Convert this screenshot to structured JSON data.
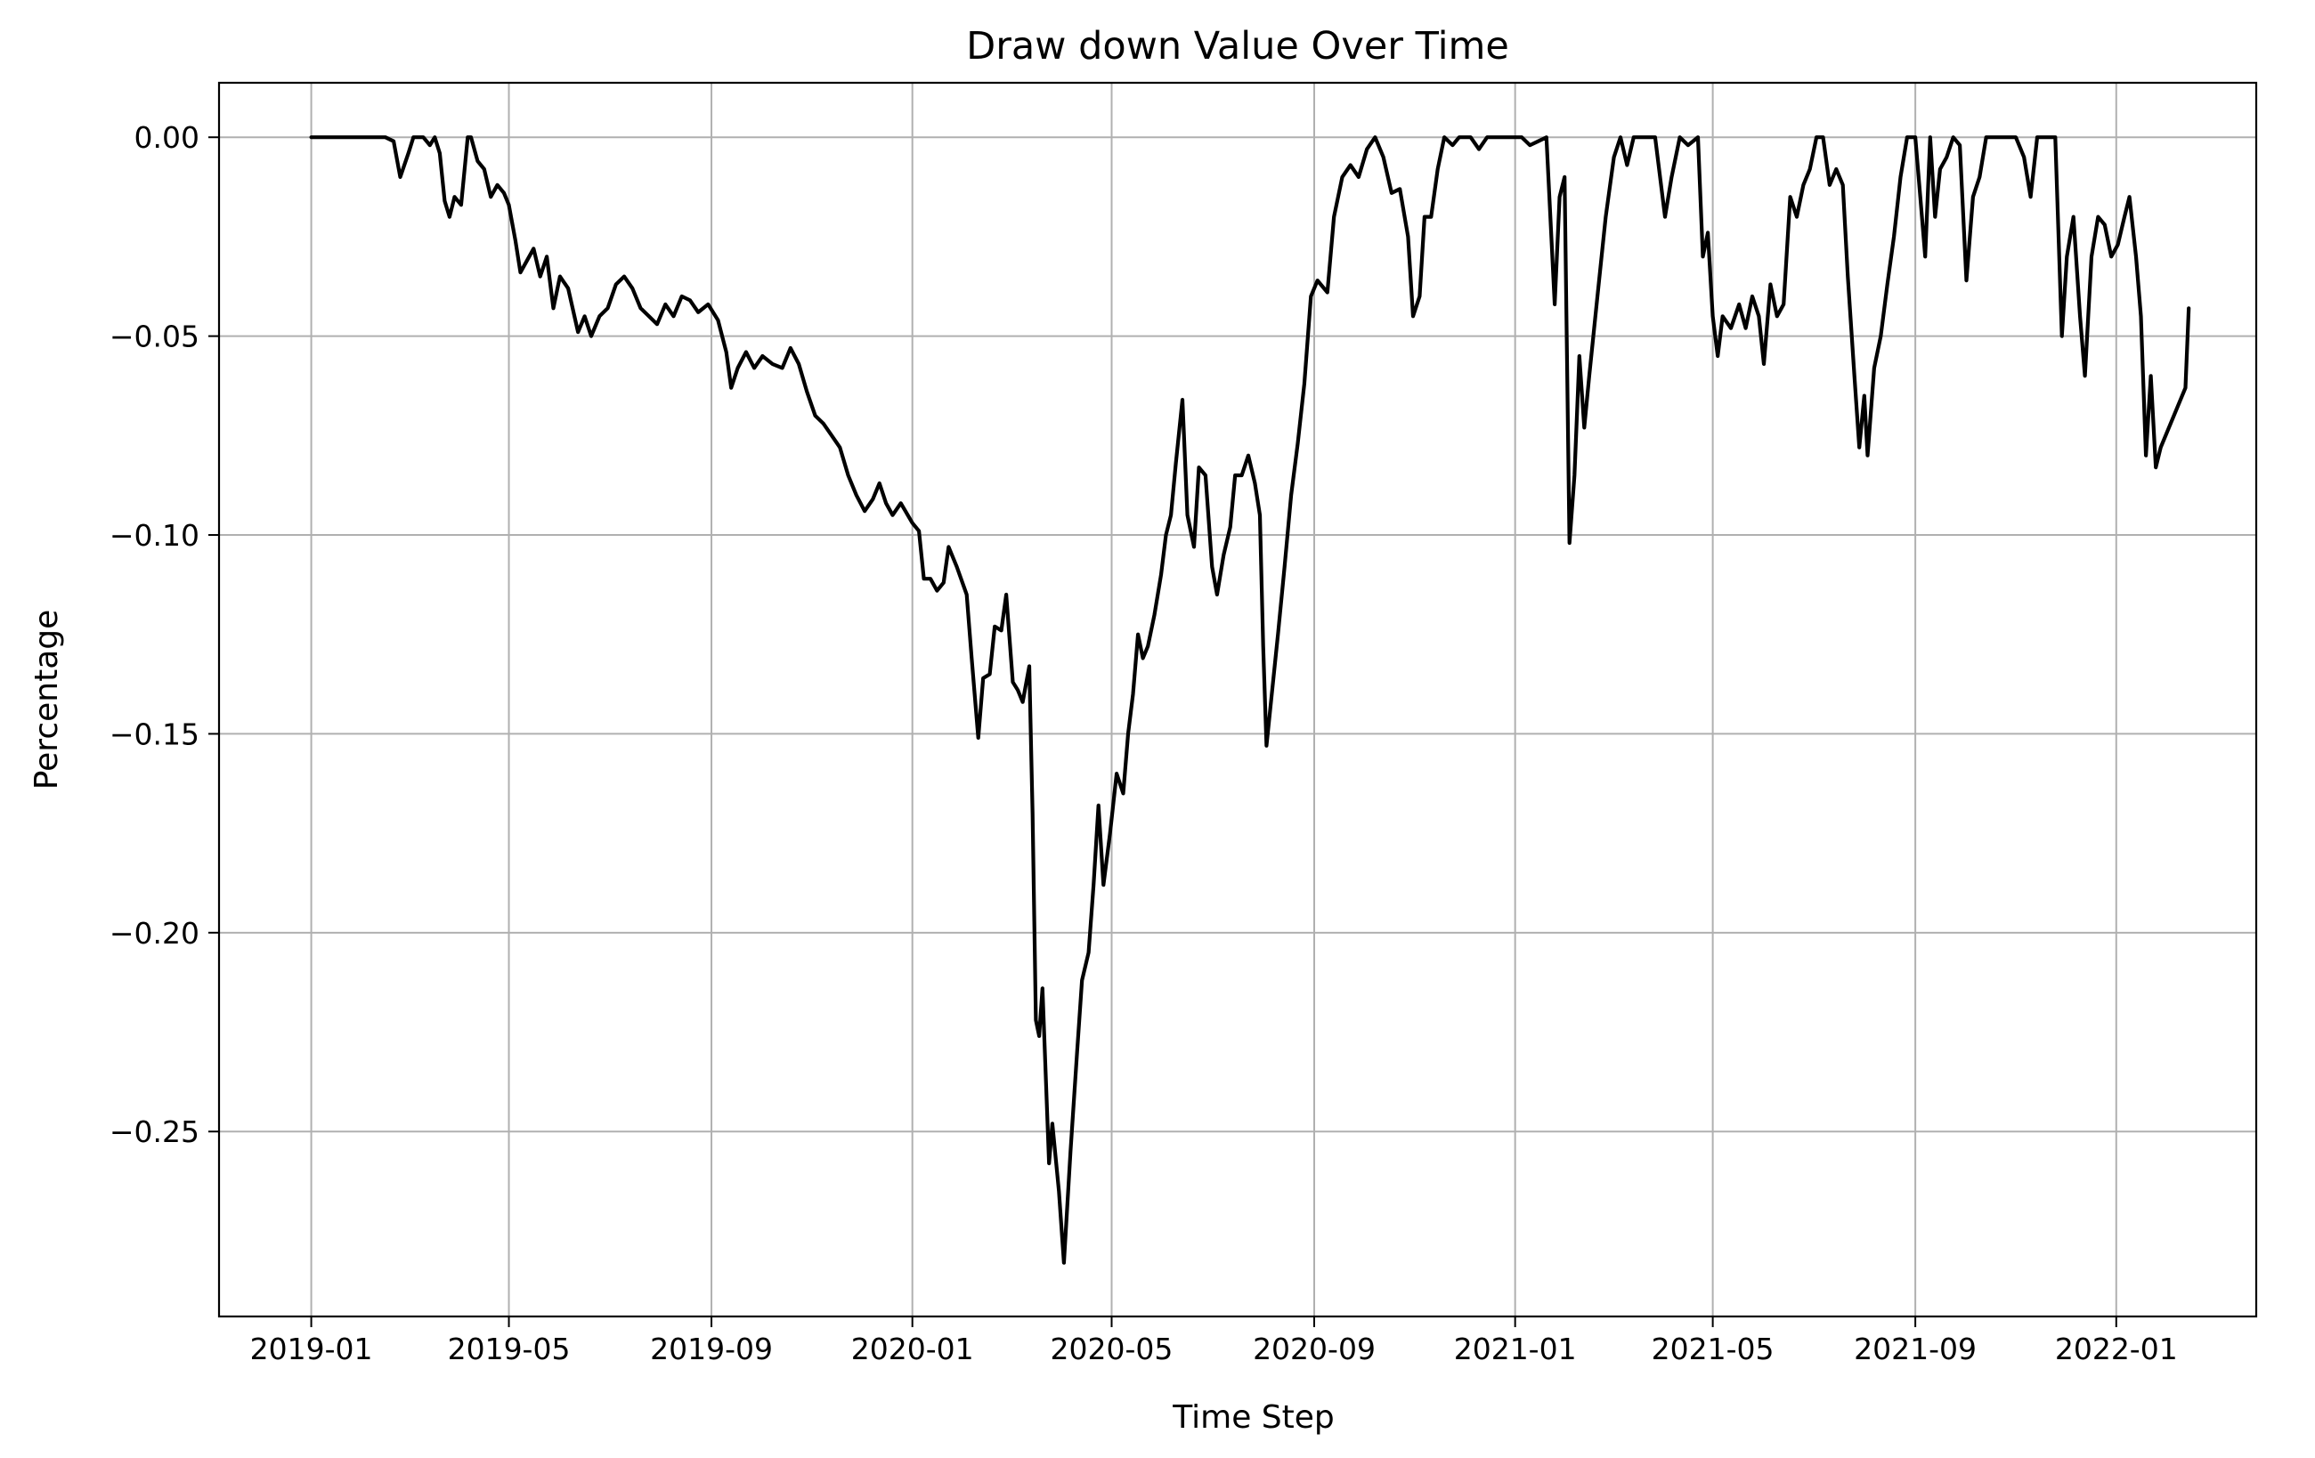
{
  "chart_data": {
    "type": "line",
    "title": "Draw down Value Over Time",
    "xlabel": "Time Step",
    "ylabel": "Percentage",
    "xlim": [
      "2018-11-06",
      "2022-03-27"
    ],
    "ylim": [
      -0.2965,
      0.0137
    ],
    "x_ticks": [
      "2019-01",
      "2019-05",
      "2019-09",
      "2020-01",
      "2020-05",
      "2020-09",
      "2021-01",
      "2021-05",
      "2021-09",
      "2022-01"
    ],
    "y_ticks": [
      0.0,
      -0.05,
      -0.1,
      -0.15,
      -0.2,
      -0.25
    ],
    "y_tick_labels": [
      "0.00",
      "−0.05",
      "−0.10",
      "−0.15",
      "−0.20",
      "−0.25"
    ],
    "grid": true,
    "line_color": "#000000",
    "grid_color": "#b0b0b0",
    "series": [
      {
        "values": [
          [
            "2019-01-01",
            0.0
          ],
          [
            "2019-02-15",
            0.0
          ],
          [
            "2019-02-20",
            -0.001
          ],
          [
            "2019-02-24",
            -0.01
          ],
          [
            "2019-03-01",
            -0.004
          ],
          [
            "2019-03-04",
            0.0
          ],
          [
            "2019-03-10",
            0.0
          ],
          [
            "2019-03-14",
            -0.002
          ],
          [
            "2019-03-17",
            0.0
          ],
          [
            "2019-03-20",
            -0.004
          ],
          [
            "2019-03-23",
            -0.016
          ],
          [
            "2019-03-26",
            -0.02
          ],
          [
            "2019-03-29",
            -0.015
          ],
          [
            "2019-04-02",
            -0.017
          ],
          [
            "2019-04-06",
            0.0
          ],
          [
            "2019-04-08",
            0.0
          ],
          [
            "2019-04-12",
            -0.006
          ],
          [
            "2019-04-16",
            -0.008
          ],
          [
            "2019-04-20",
            -0.015
          ],
          [
            "2019-04-24",
            -0.012
          ],
          [
            "2019-04-28",
            -0.014
          ],
          [
            "2019-05-01",
            -0.017
          ],
          [
            "2019-05-05",
            -0.026
          ],
          [
            "2019-05-08",
            -0.034
          ],
          [
            "2019-05-12",
            -0.031
          ],
          [
            "2019-05-16",
            -0.028
          ],
          [
            "2019-05-20",
            -0.035
          ],
          [
            "2019-05-24",
            -0.03
          ],
          [
            "2019-05-28",
            -0.043
          ],
          [
            "2019-06-01",
            -0.035
          ],
          [
            "2019-06-06",
            -0.038
          ],
          [
            "2019-06-12",
            -0.049
          ],
          [
            "2019-06-16",
            -0.045
          ],
          [
            "2019-06-20",
            -0.05
          ],
          [
            "2019-06-25",
            -0.045
          ],
          [
            "2019-06-30",
            -0.043
          ],
          [
            "2019-07-05",
            -0.037
          ],
          [
            "2019-07-10",
            -0.035
          ],
          [
            "2019-07-15",
            -0.038
          ],
          [
            "2019-07-20",
            -0.043
          ],
          [
            "2019-07-25",
            -0.045
          ],
          [
            "2019-07-30",
            -0.047
          ],
          [
            "2019-08-04",
            -0.042
          ],
          [
            "2019-08-09",
            -0.045
          ],
          [
            "2019-08-14",
            -0.04
          ],
          [
            "2019-08-19",
            -0.041
          ],
          [
            "2019-08-24",
            -0.044
          ],
          [
            "2019-08-30",
            -0.042
          ],
          [
            "2019-09-05",
            -0.046
          ],
          [
            "2019-09-10",
            -0.054
          ],
          [
            "2019-09-13",
            -0.063
          ],
          [
            "2019-09-17",
            -0.058
          ],
          [
            "2019-09-22",
            -0.054
          ],
          [
            "2019-09-27",
            -0.058
          ],
          [
            "2019-10-02",
            -0.055
          ],
          [
            "2019-10-08",
            -0.057
          ],
          [
            "2019-10-14",
            -0.058
          ],
          [
            "2019-10-19",
            -0.053
          ],
          [
            "2019-10-24",
            -0.057
          ],
          [
            "2019-10-29",
            -0.064
          ],
          [
            "2019-11-03",
            -0.07
          ],
          [
            "2019-11-08",
            -0.072
          ],
          [
            "2019-11-13",
            -0.075
          ],
          [
            "2019-11-18",
            -0.078
          ],
          [
            "2019-11-23",
            -0.085
          ],
          [
            "2019-11-28",
            -0.09
          ],
          [
            "2019-12-03",
            -0.094
          ],
          [
            "2019-12-08",
            -0.091
          ],
          [
            "2019-12-12",
            -0.087
          ],
          [
            "2019-12-16",
            -0.092
          ],
          [
            "2019-12-20",
            -0.095
          ],
          [
            "2019-12-25",
            -0.092
          ],
          [
            "2020-01-01",
            -0.097
          ],
          [
            "2020-01-05",
            -0.099
          ],
          [
            "2020-01-08",
            -0.111
          ],
          [
            "2020-01-12",
            -0.111
          ],
          [
            "2020-01-16",
            -0.114
          ],
          [
            "2020-01-20",
            -0.112
          ],
          [
            "2020-01-23",
            -0.103
          ],
          [
            "2020-01-28",
            -0.108
          ],
          [
            "2020-02-03",
            -0.115
          ],
          [
            "2020-02-06",
            -0.131
          ],
          [
            "2020-02-10",
            -0.151
          ],
          [
            "2020-02-13",
            -0.136
          ],
          [
            "2020-02-17",
            -0.135
          ],
          [
            "2020-02-20",
            -0.123
          ],
          [
            "2020-02-24",
            -0.124
          ],
          [
            "2020-02-27",
            -0.115
          ],
          [
            "2020-03-02",
            -0.137
          ],
          [
            "2020-03-05",
            -0.139
          ],
          [
            "2020-03-08",
            -0.142
          ],
          [
            "2020-03-12",
            -0.133
          ],
          [
            "2020-03-14",
            -0.17
          ],
          [
            "2020-03-16",
            -0.222
          ],
          [
            "2020-03-18",
            -0.226
          ],
          [
            "2020-03-20",
            -0.214
          ],
          [
            "2020-03-24",
            -0.258
          ],
          [
            "2020-03-26",
            -0.248
          ],
          [
            "2020-03-30",
            -0.265
          ],
          [
            "2020-04-02",
            -0.283
          ],
          [
            "2020-04-06",
            -0.255
          ],
          [
            "2020-04-10",
            -0.23
          ],
          [
            "2020-04-13",
            -0.212
          ],
          [
            "2020-04-17",
            -0.205
          ],
          [
            "2020-04-20",
            -0.188
          ],
          [
            "2020-04-23",
            -0.168
          ],
          [
            "2020-04-26",
            -0.188
          ],
          [
            "2020-04-30",
            -0.175
          ],
          [
            "2020-05-04",
            -0.16
          ],
          [
            "2020-05-08",
            -0.165
          ],
          [
            "2020-05-11",
            -0.15
          ],
          [
            "2020-05-14",
            -0.14
          ],
          [
            "2020-05-17",
            -0.125
          ],
          [
            "2020-05-20",
            -0.131
          ],
          [
            "2020-05-23",
            -0.128
          ],
          [
            "2020-05-27",
            -0.12
          ],
          [
            "2020-05-31",
            -0.11
          ],
          [
            "2020-06-03",
            -0.1
          ],
          [
            "2020-06-06",
            -0.095
          ],
          [
            "2020-06-09",
            -0.082
          ],
          [
            "2020-06-13",
            -0.066
          ],
          [
            "2020-06-16",
            -0.095
          ],
          [
            "2020-06-20",
            -0.103
          ],
          [
            "2020-06-23",
            -0.083
          ],
          [
            "2020-06-27",
            -0.085
          ],
          [
            "2020-07-01",
            -0.108
          ],
          [
            "2020-07-04",
            -0.115
          ],
          [
            "2020-07-08",
            -0.105
          ],
          [
            "2020-07-12",
            -0.098
          ],
          [
            "2020-07-15",
            -0.085
          ],
          [
            "2020-07-19",
            -0.085
          ],
          [
            "2020-07-23",
            -0.08
          ],
          [
            "2020-07-27",
            -0.087
          ],
          [
            "2020-07-30",
            -0.095
          ],
          [
            "2020-08-01",
            -0.128
          ],
          [
            "2020-08-03",
            -0.153
          ],
          [
            "2020-08-06",
            -0.141
          ],
          [
            "2020-08-10",
            -0.125
          ],
          [
            "2020-08-14",
            -0.108
          ],
          [
            "2020-08-18",
            -0.09
          ],
          [
            "2020-08-22",
            -0.077
          ],
          [
            "2020-08-26",
            -0.062
          ],
          [
            "2020-08-30",
            -0.04
          ],
          [
            "2020-09-03",
            -0.036
          ],
          [
            "2020-09-09",
            -0.039
          ],
          [
            "2020-09-13",
            -0.02
          ],
          [
            "2020-09-18",
            -0.01
          ],
          [
            "2020-09-23",
            -0.007
          ],
          [
            "2020-09-28",
            -0.01
          ],
          [
            "2020-10-03",
            -0.003
          ],
          [
            "2020-10-08",
            0.0
          ],
          [
            "2020-10-13",
            -0.005
          ],
          [
            "2020-10-18",
            -0.014
          ],
          [
            "2020-10-23",
            -0.013
          ],
          [
            "2020-10-28",
            -0.025
          ],
          [
            "2020-10-31",
            -0.045
          ],
          [
            "2020-11-04",
            -0.04
          ],
          [
            "2020-11-07",
            -0.02
          ],
          [
            "2020-11-11",
            -0.02
          ],
          [
            "2020-11-15",
            -0.008
          ],
          [
            "2020-11-19",
            0.0
          ],
          [
            "2020-11-24",
            -0.002
          ],
          [
            "2020-11-28",
            0.0
          ],
          [
            "2020-12-05",
            0.0
          ],
          [
            "2020-12-10",
            -0.003
          ],
          [
            "2020-12-15",
            0.0
          ],
          [
            "2020-12-20",
            0.0
          ],
          [
            "2020-12-25",
            0.0
          ],
          [
            "2021-01-05",
            0.0
          ],
          [
            "2021-01-10",
            -0.002
          ],
          [
            "2021-01-15",
            -0.001
          ],
          [
            "2021-01-20",
            0.0
          ],
          [
            "2021-01-25",
            -0.042
          ],
          [
            "2021-01-28",
            -0.015
          ],
          [
            "2021-01-31",
            -0.01
          ],
          [
            "2021-02-03",
            -0.102
          ],
          [
            "2021-02-06",
            -0.085
          ],
          [
            "2021-02-09",
            -0.055
          ],
          [
            "2021-02-12",
            -0.073
          ],
          [
            "2021-02-15",
            -0.06
          ],
          [
            "2021-02-20",
            -0.04
          ],
          [
            "2021-02-25",
            -0.02
          ],
          [
            "2021-03-02",
            -0.005
          ],
          [
            "2021-03-06",
            0.0
          ],
          [
            "2021-03-10",
            -0.007
          ],
          [
            "2021-03-14",
            0.0
          ],
          [
            "2021-03-20",
            0.0
          ],
          [
            "2021-03-27",
            0.0
          ],
          [
            "2021-04-02",
            -0.02
          ],
          [
            "2021-04-06",
            -0.01
          ],
          [
            "2021-04-11",
            0.0
          ],
          [
            "2021-04-16",
            -0.002
          ],
          [
            "2021-04-22",
            0.0
          ],
          [
            "2021-04-25",
            -0.03
          ],
          [
            "2021-04-28",
            -0.024
          ],
          [
            "2021-05-01",
            -0.045
          ],
          [
            "2021-05-04",
            -0.055
          ],
          [
            "2021-05-07",
            -0.045
          ],
          [
            "2021-05-12",
            -0.048
          ],
          [
            "2021-05-17",
            -0.042
          ],
          [
            "2021-05-21",
            -0.048
          ],
          [
            "2021-05-25",
            -0.04
          ],
          [
            "2021-05-29",
            -0.045
          ],
          [
            "2021-06-01",
            -0.057
          ],
          [
            "2021-06-05",
            -0.037
          ],
          [
            "2021-06-09",
            -0.045
          ],
          [
            "2021-06-13",
            -0.042
          ],
          [
            "2021-06-17",
            -0.015
          ],
          [
            "2021-06-21",
            -0.02
          ],
          [
            "2021-06-25",
            -0.012
          ],
          [
            "2021-06-29",
            -0.008
          ],
          [
            "2021-07-03",
            0.0
          ],
          [
            "2021-07-07",
            0.0
          ],
          [
            "2021-07-11",
            -0.012
          ],
          [
            "2021-07-15",
            -0.008
          ],
          [
            "2021-07-19",
            -0.012
          ],
          [
            "2021-07-22",
            -0.035
          ],
          [
            "2021-07-26",
            -0.06
          ],
          [
            "2021-07-29",
            -0.078
          ],
          [
            "2021-08-01",
            -0.065
          ],
          [
            "2021-08-03",
            -0.08
          ],
          [
            "2021-08-07",
            -0.058
          ],
          [
            "2021-08-11",
            -0.05
          ],
          [
            "2021-08-15",
            -0.037
          ],
          [
            "2021-08-19",
            -0.025
          ],
          [
            "2021-08-23",
            -0.01
          ],
          [
            "2021-08-27",
            0.0
          ],
          [
            "2021-09-01",
            0.0
          ],
          [
            "2021-09-04",
            -0.015
          ],
          [
            "2021-09-07",
            -0.03
          ],
          [
            "2021-09-10",
            0.0
          ],
          [
            "2021-09-13",
            -0.02
          ],
          [
            "2021-09-16",
            -0.008
          ],
          [
            "2021-09-20",
            -0.005
          ],
          [
            "2021-09-24",
            0.0
          ],
          [
            "2021-09-28",
            -0.002
          ],
          [
            "2021-10-02",
            -0.036
          ],
          [
            "2021-10-06",
            -0.015
          ],
          [
            "2021-10-10",
            -0.01
          ],
          [
            "2021-10-14",
            0.0
          ],
          [
            "2021-10-20",
            0.0
          ],
          [
            "2021-10-26",
            0.0
          ],
          [
            "2021-11-01",
            0.0
          ],
          [
            "2021-11-06",
            -0.005
          ],
          [
            "2021-11-10",
            -0.015
          ],
          [
            "2021-11-14",
            0.0
          ],
          [
            "2021-11-20",
            0.0
          ],
          [
            "2021-11-25",
            0.0
          ],
          [
            "2021-11-29",
            -0.05
          ],
          [
            "2021-12-02",
            -0.03
          ],
          [
            "2021-12-06",
            -0.02
          ],
          [
            "2021-12-10",
            -0.045
          ],
          [
            "2021-12-13",
            -0.06
          ],
          [
            "2021-12-17",
            -0.03
          ],
          [
            "2021-12-21",
            -0.02
          ],
          [
            "2021-12-25",
            -0.022
          ],
          [
            "2021-12-29",
            -0.03
          ],
          [
            "2022-01-02",
            -0.027
          ],
          [
            "2022-01-06",
            -0.02
          ],
          [
            "2022-01-09",
            -0.015
          ],
          [
            "2022-01-13",
            -0.03
          ],
          [
            "2022-01-16",
            -0.045
          ],
          [
            "2022-01-19",
            -0.08
          ],
          [
            "2022-01-22",
            -0.06
          ],
          [
            "2022-01-25",
            -0.083
          ],
          [
            "2022-01-28",
            -0.078
          ],
          [
            "2022-02-12",
            -0.063
          ],
          [
            "2022-02-14",
            -0.043
          ]
        ]
      }
    ]
  }
}
